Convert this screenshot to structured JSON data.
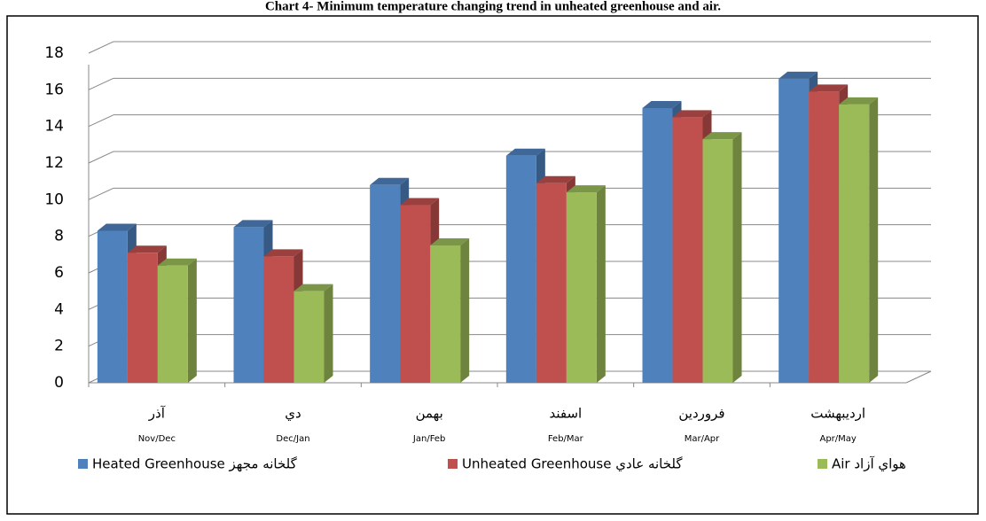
{
  "chart_data": {
    "type": "bar3d",
    "title": "Chart 4- Minimum temperature changing trend in unheated greenhouse and air.",
    "categories": [
      "آذر",
      "دي",
      "بهمن",
      "اسفند",
      "فروردين",
      "ارديبهشت"
    ],
    "subcategories": [
      "Nov/Dec",
      "Dec/Jan",
      "Jan/Feb",
      "Feb/Mar",
      "Mar/Apr",
      "Apr/May"
    ],
    "series": [
      {
        "name": "Heated Greenhouse گلخانه مجهز",
        "color": "#4f81bd",
        "values": [
          8.3,
          8.5,
          10.8,
          12.4,
          15,
          16.6
        ]
      },
      {
        "name": "Unheated Greenhouse گلخانه عادي",
        "color": "#c0504d",
        "values": [
          7.1,
          6.9,
          9.7,
          10.9,
          14.5,
          15.9
        ]
      },
      {
        "name": "Air هواي آزاد",
        "color": "#9bbb59",
        "values": [
          6.4,
          5.0,
          7.5,
          10.4,
          13.3,
          15.2
        ]
      }
    ],
    "ylim": [
      0,
      18
    ],
    "yticks": [
      0,
      2,
      4,
      6,
      8,
      10,
      12,
      14,
      16,
      18
    ],
    "grid": true
  }
}
